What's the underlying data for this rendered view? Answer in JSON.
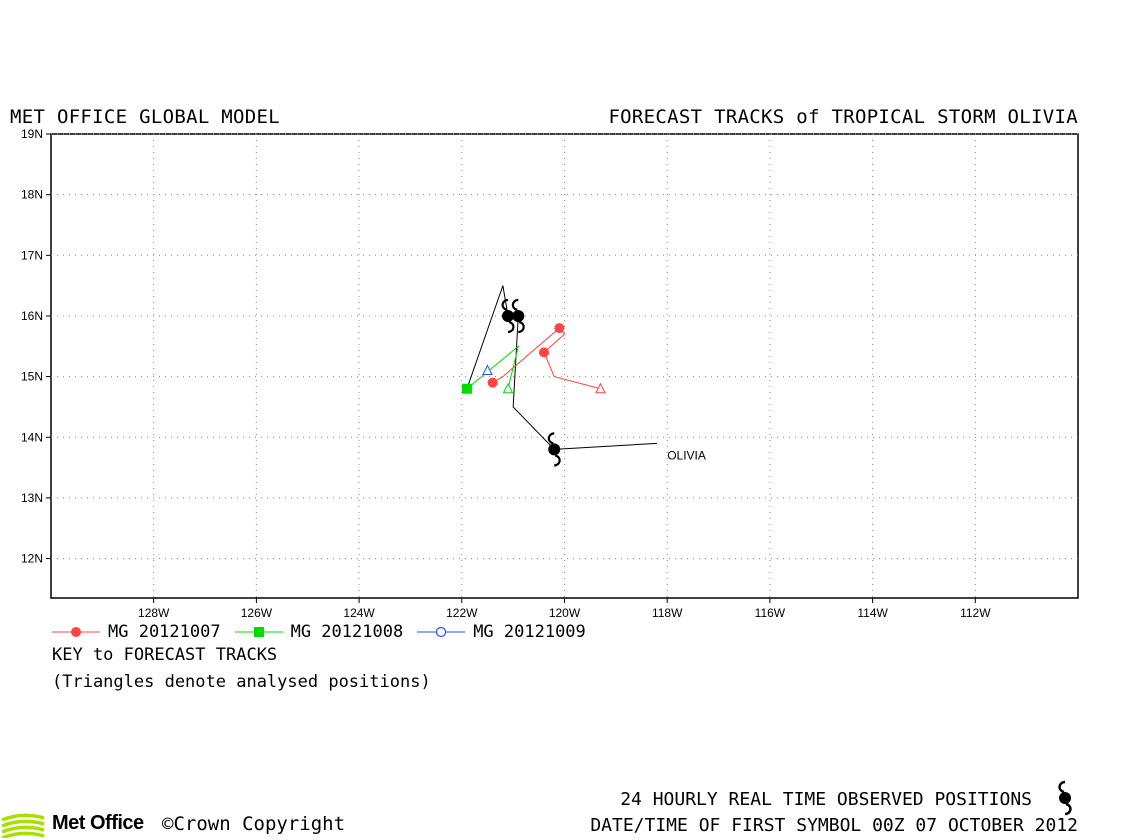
{
  "header": {
    "left_title": "MET OFFICE GLOBAL MODEL",
    "right_title": "FORECAST TRACKS of TROPICAL STORM OLIVIA"
  },
  "map": {
    "lon_range": [
      -130,
      -110
    ],
    "lat_range": [
      11.35,
      19
    ],
    "lon_ticks": [
      {
        "lon": -128,
        "label": "128W"
      },
      {
        "lon": -126,
        "label": "126W"
      },
      {
        "lon": -124,
        "label": "124W"
      },
      {
        "lon": -122,
        "label": "122W"
      },
      {
        "lon": -120,
        "label": "120W"
      },
      {
        "lon": -118,
        "label": "118W"
      },
      {
        "lon": -116,
        "label": "116W"
      },
      {
        "lon": -114,
        "label": "114W"
      },
      {
        "lon": -112,
        "label": "112W"
      }
    ],
    "lat_ticks": [
      {
        "lat": 12,
        "label": "12N"
      },
      {
        "lat": 13,
        "label": "13N"
      },
      {
        "lat": 14,
        "label": "14N"
      },
      {
        "lat": 15,
        "label": "15N"
      },
      {
        "lat": 16,
        "label": "16N"
      },
      {
        "lat": 17,
        "label": "17N"
      },
      {
        "lat": 18,
        "label": "18N"
      },
      {
        "lat": 19,
        "label": "19N"
      }
    ],
    "grid": "dotted",
    "storm_name": "OLIVIA",
    "storm_label_pos": {
      "lon": -118.0,
      "lat": 13.63
    },
    "observed_track": [
      [
        -118.2,
        13.9
      ],
      [
        -120.2,
        13.8
      ],
      [
        -121.0,
        14.5
      ],
      [
        -120.9,
        16.0
      ],
      [
        -121.1,
        16.0
      ],
      [
        -121.2,
        16.5
      ],
      [
        -121.9,
        14.8
      ]
    ],
    "observed_symbols": [
      {
        "lon": -120.2,
        "lat": 13.8
      },
      {
        "lon": -120.9,
        "lat": 16.0
      },
      {
        "lon": -121.1,
        "lat": 16.0
      }
    ],
    "colors": {
      "red": "#ff4444",
      "green": "#00dd00",
      "blue": "#2255ee",
      "track": "#000000"
    }
  },
  "chart_data": {
    "type": "scatter",
    "title": "FORECAST TRACKS of TROPICAL STORM OLIVIA",
    "xlim": [
      -130,
      -110
    ],
    "ylim": [
      11.35,
      19
    ],
    "series": [
      {
        "name": "MG 20121007",
        "color": "#ff4444",
        "marker": "circle",
        "analysed": {
          "lon": -119.3,
          "lat": 14.8
        },
        "points": [
          [
            -119.3,
            14.8
          ],
          [
            -120.2,
            15.0
          ],
          [
            -120.4,
            15.4
          ],
          [
            -120.0,
            15.7
          ],
          [
            -120.1,
            15.8
          ],
          [
            -121.2,
            15.0
          ],
          [
            -121.4,
            14.9
          ]
        ],
        "markers": [
          [
            -120.4,
            15.4
          ],
          [
            -120.1,
            15.8
          ],
          [
            -121.4,
            14.9
          ]
        ]
      },
      {
        "name": "MG 20121008",
        "color": "#00dd00",
        "marker": "square",
        "analysed": {
          "lon": -121.1,
          "lat": 14.8
        },
        "points": [
          [
            -121.1,
            14.8
          ],
          [
            -120.9,
            15.5
          ],
          [
            -121.9,
            14.8
          ]
        ],
        "markers": [
          [
            -121.9,
            14.8
          ]
        ]
      },
      {
        "name": "MG 20121009",
        "color": "#2255ee",
        "marker": "open-circle",
        "analysed": {
          "lon": -121.5,
          "lat": 15.1
        },
        "points": [],
        "markers": []
      }
    ]
  },
  "legend": {
    "items": [
      {
        "label": "MG 20121007",
        "color": "#ff4444",
        "marker": "circle"
      },
      {
        "label": "MG 20121008",
        "color": "#00dd00",
        "marker": "square"
      },
      {
        "label": "MG 20121009",
        "color": "#2255ee",
        "marker": "open-circle"
      }
    ],
    "key_title": "KEY to FORECAST TRACKS",
    "key_note": "(Triangles denote analysed positions)"
  },
  "footer": {
    "observed_line": "24 HOURLY REAL TIME OBSERVED POSITIONS",
    "first_symbol_line": "DATE/TIME OF FIRST SYMBOL 00Z 07 OCTOBER 2012",
    "brand": "Met Office",
    "copyright": "©Crown Copyright"
  }
}
